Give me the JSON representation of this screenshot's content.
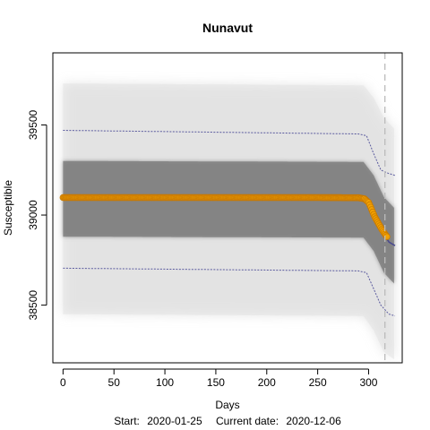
{
  "chart_data": {
    "type": "scatter",
    "title": "Nunavut",
    "xlabel": "Days",
    "ylabel": "Susceptible",
    "subtitle_start_label": "Start:",
    "start_date": "2020-01-25",
    "current_date_label": "Current date:",
    "current_date": "2020-12-06",
    "xlim": [
      -10,
      333
    ],
    "ylim": [
      38180,
      39900
    ],
    "x_ticks": [
      0,
      50,
      100,
      150,
      200,
      250,
      300
    ],
    "x_tick_labels": [
      "0",
      "50",
      "100",
      "150",
      "200",
      "250",
      "300"
    ],
    "y_ticks": [
      38500,
      39000,
      39500
    ],
    "y_tick_labels": [
      "38500",
      "39000",
      "39500"
    ],
    "current_day": 316,
    "grid": false,
    "series": [
      {
        "role": "observed",
        "color": "#F5A300",
        "points": [
          [
            0,
            39097
          ],
          [
            50,
            39097
          ],
          [
            100,
            39097
          ],
          [
            150,
            39097
          ],
          [
            200,
            39097
          ],
          [
            250,
            39097
          ],
          [
            290,
            39096
          ],
          [
            296,
            39090
          ],
          [
            300,
            39070
          ],
          [
            303,
            39030
          ],
          [
            306,
            38990
          ],
          [
            310,
            38950
          ],
          [
            313,
            38920
          ],
          [
            316,
            38895
          ],
          [
            318,
            38880
          ]
        ]
      },
      {
        "role": "simulation-cloud",
        "color": "#808080",
        "center": [
          [
            0,
            39090
          ],
          [
            295,
            39085
          ],
          [
            300,
            39065
          ],
          [
            305,
            39010
          ],
          [
            310,
            38950
          ],
          [
            315,
            38890
          ],
          [
            320,
            38850
          ],
          [
            325,
            38830
          ]
        ],
        "inner_band": [
          [
            0,
            38880,
            39300
          ],
          [
            295,
            38875,
            39295
          ],
          [
            305,
            38800,
            39220
          ],
          [
            315,
            38680,
            39100
          ],
          [
            325,
            38620,
            39040
          ]
        ],
        "outer_band": [
          [
            0,
            38450,
            39730
          ],
          [
            295,
            38440,
            39720
          ],
          [
            305,
            38360,
            39650
          ],
          [
            315,
            38240,
            39540
          ],
          [
            325,
            38200,
            39480
          ]
        ]
      },
      {
        "role": "model-median",
        "color": "#4B4B8F",
        "points": [
          [
            0,
            39092
          ],
          [
            290,
            39088
          ],
          [
            296,
            39075
          ],
          [
            302,
            39040
          ],
          [
            308,
            38970
          ],
          [
            314,
            38900
          ],
          [
            320,
            38850
          ],
          [
            326,
            38830
          ]
        ]
      },
      {
        "role": "upper-quantile",
        "color": "#5A5A9E",
        "points": [
          [
            0,
            39470
          ],
          [
            290,
            39450
          ],
          [
            298,
            39440
          ],
          [
            305,
            39340
          ],
          [
            312,
            39250
          ],
          [
            320,
            39230
          ],
          [
            326,
            39220
          ]
        ]
      },
      {
        "role": "lower-quantile",
        "color": "#5A5A9E",
        "points": [
          [
            0,
            38705
          ],
          [
            290,
            38690
          ],
          [
            298,
            38680
          ],
          [
            305,
            38590
          ],
          [
            312,
            38500
          ],
          [
            320,
            38450
          ],
          [
            326,
            38440
          ]
        ]
      }
    ],
    "annotations": {
      "current_day_line_color": "#BBBBBB"
    }
  }
}
